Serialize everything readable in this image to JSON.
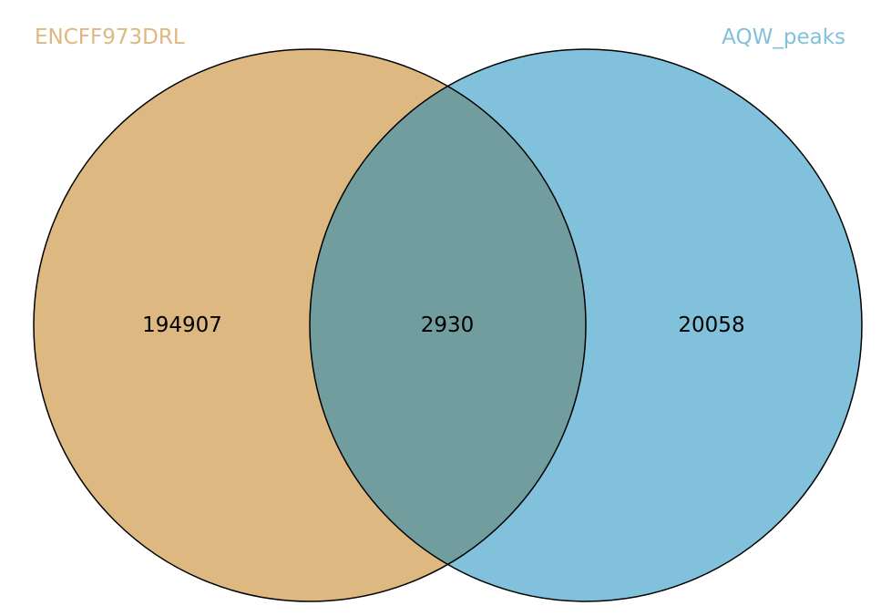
{
  "venn": {
    "sets": [
      {
        "name": "ENCFF973DRL",
        "color": "#ddb881"
      },
      {
        "name": "AQW_peaks",
        "color": "#81c1dc"
      }
    ],
    "overlap_color": "#729d9e",
    "outline_color": "#000000",
    "counts": {
      "left_only": "194907",
      "both": "2930",
      "right_only": "20058"
    }
  }
}
